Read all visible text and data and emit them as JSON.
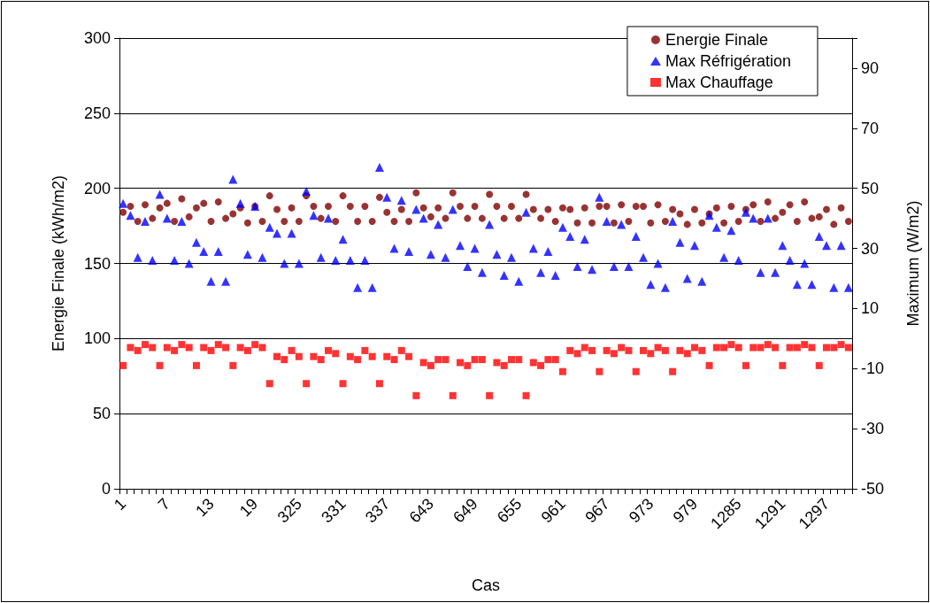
{
  "chart_data": {
    "type": "scatter",
    "xlabel": "Cas",
    "ylabel": "Energie Finale (kWh/m2)",
    "y2label": "Maximum (W/m2)",
    "categories": [
      "1",
      null,
      null,
      null,
      null,
      null,
      "7",
      null,
      null,
      null,
      null,
      null,
      "13",
      null,
      null,
      null,
      null,
      null,
      "19",
      null,
      null,
      null,
      null,
      null,
      "325",
      null,
      null,
      null,
      null,
      null,
      "331",
      null,
      null,
      null,
      null,
      null,
      "337",
      null,
      null,
      null,
      null,
      null,
      "643",
      null,
      null,
      null,
      null,
      null,
      "649",
      null,
      null,
      null,
      null,
      null,
      "655",
      null,
      null,
      null,
      null,
      null,
      "961",
      null,
      null,
      null,
      null,
      null,
      "967",
      null,
      null,
      null,
      null,
      null,
      "973",
      null,
      null,
      null,
      null,
      null,
      "979",
      null,
      null,
      null,
      null,
      null,
      "1285",
      null,
      null,
      null,
      null,
      null,
      "1291",
      null,
      null,
      null,
      null,
      null,
      "1297",
      null,
      null,
      null
    ],
    "ylim": [
      0,
      300
    ],
    "yticks": [
      0,
      50,
      100,
      150,
      200,
      250,
      300
    ],
    "y2lim": [
      -50,
      100
    ],
    "y2ticks": [
      -50,
      -30,
      -10,
      10,
      30,
      50,
      70,
      90,
      {
        "value": 100,
        "label": null
      }
    ],
    "grid": "y",
    "legend": "top right",
    "series": [
      {
        "name": "Energie Finale",
        "color": "#800000",
        "marker": "circle",
        "values": [
          184,
          188,
          178,
          189,
          180,
          187,
          190,
          178,
          193,
          181,
          187,
          190,
          178,
          191,
          180,
          183,
          187,
          177,
          188,
          178,
          195,
          186,
          178,
          187,
          178,
          195,
          188,
          180,
          188,
          178,
          195,
          188,
          178,
          188,
          178,
          194,
          184,
          178,
          186,
          178,
          197,
          187,
          181,
          187,
          180,
          197,
          188,
          180,
          188,
          180,
          196,
          188,
          180,
          188,
          180,
          196,
          186,
          180,
          186,
          178,
          187,
          186,
          177,
          187,
          177,
          188,
          188,
          177,
          189,
          178,
          188,
          188,
          177,
          189,
          178,
          186,
          183,
          176,
          186,
          177,
          183,
          187,
          177,
          188,
          178,
          186,
          189,
          178,
          191,
          180,
          184,
          189,
          178,
          191,
          180,
          181,
          186,
          176,
          187,
          178
        ]
      },
      {
        "name": "Max Réfrigération",
        "color": "#0000ff",
        "marker": "triangle",
        "axis": "y2",
        "values": [
          45,
          41,
          27,
          39,
          26,
          48,
          40,
          26,
          39,
          25,
          32,
          29,
          19,
          29,
          19,
          53,
          45,
          28,
          44,
          27,
          37,
          35,
          25,
          35,
          25,
          49,
          41,
          27,
          40,
          26,
          33,
          26,
          17,
          26,
          17,
          57,
          47,
          30,
          46,
          29,
          43,
          40,
          28,
          38,
          27,
          43,
          31,
          24,
          30,
          22,
          38,
          28,
          21,
          27,
          19,
          42,
          30,
          22,
          29,
          21,
          37,
          34,
          24,
          33,
          23,
          47,
          39,
          24,
          38,
          24,
          34,
          27,
          18,
          25,
          17,
          39,
          32,
          20,
          31,
          19,
          41,
          37,
          27,
          36,
          26,
          42,
          40,
          22,
          40,
          22,
          31,
          26,
          18,
          25,
          18,
          34,
          31,
          17,
          31,
          17
        ]
      },
      {
        "name": "Max Chauffage",
        "color": "#ff0000",
        "marker": "square",
        "axis": "y2",
        "values": [
          -9,
          -3,
          -4,
          -2,
          -3,
          -9,
          -3,
          -4,
          -2,
          -3,
          -9,
          -3,
          -4,
          -2,
          -3,
          -9,
          -3,
          -4,
          -2,
          -3,
          -15,
          -6,
          -7,
          -4,
          -6,
          -15,
          -6,
          -7,
          -4,
          -5,
          -15,
          -6,
          -7,
          -4,
          -6,
          -15,
          -6,
          -7,
          -4,
          -6,
          -19,
          -8,
          -9,
          -7,
          -7,
          -19,
          -8,
          -9,
          -7,
          -7,
          -19,
          -8,
          -9,
          -7,
          -7,
          -19,
          -8,
          -9,
          -7,
          -7,
          -11,
          -4,
          -5,
          -3,
          -4,
          -11,
          -4,
          -5,
          -3,
          -4,
          -11,
          -4,
          -5,
          -3,
          -4,
          -11,
          -4,
          -5,
          -3,
          -4,
          -9,
          -3,
          -3,
          -2,
          -3,
          -9,
          -3,
          -3,
          -2,
          -3,
          -9,
          -3,
          -3,
          -2,
          -3,
          -9,
          -3,
          -3,
          -2,
          -3
        ]
      }
    ]
  }
}
